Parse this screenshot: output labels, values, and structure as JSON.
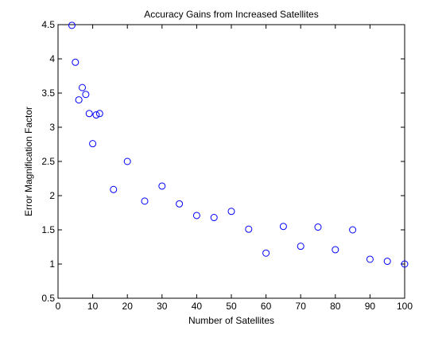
{
  "chart_data": {
    "type": "scatter",
    "title": "Accuracy Gains from Increased Satellites",
    "xlabel": "Number of Satellites",
    "ylabel": "Error Magnification Factor",
    "xlim": [
      0,
      100
    ],
    "ylim": [
      0.5,
      4.5
    ],
    "xticks": [
      "0",
      "10",
      "20",
      "30",
      "40",
      "50",
      "60",
      "70",
      "80",
      "90",
      "100"
    ],
    "yticks": [
      "0.5",
      "1",
      "1.5",
      "2",
      "2.5",
      "3",
      "3.5",
      "4",
      "4.5"
    ],
    "grid": false,
    "marker": "open-circle",
    "marker_color": "#0000ff",
    "series": [
      {
        "x": [
          4,
          5,
          6,
          7,
          8,
          9,
          10,
          11,
          12,
          16,
          20,
          25,
          30,
          35,
          40,
          45,
          50,
          55,
          60,
          65,
          70,
          75,
          80,
          85,
          90,
          95,
          100
        ],
        "y": [
          4.49,
          3.95,
          3.4,
          3.58,
          3.48,
          3.2,
          2.76,
          3.18,
          3.2,
          2.09,
          2.5,
          1.92,
          2.14,
          1.88,
          1.71,
          1.68,
          1.77,
          1.51,
          1.16,
          1.55,
          1.26,
          1.54,
          1.21,
          1.5,
          1.07,
          1.04,
          1.0
        ]
      }
    ]
  }
}
